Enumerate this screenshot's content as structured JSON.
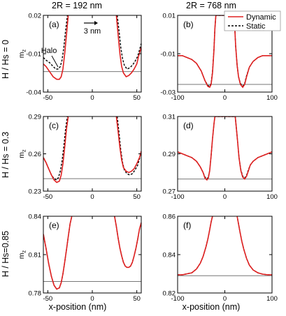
{
  "figure": {
    "col_titles": [
      "2R = 192 nm",
      "2R = 768 nm"
    ],
    "row_titles": [
      "H / Hs = 0",
      "H / Hs = 0.3",
      "H / Hs=0.85"
    ],
    "xlabel": "x-position (nm)",
    "legend": [
      {
        "label": "Dynamic",
        "color": "#e02020",
        "dash": "solid"
      },
      {
        "label": "Static",
        "color": "#000000",
        "dash": "dashed"
      }
    ],
    "annotations": {
      "halo": "Halo",
      "scale": "3 nm"
    }
  },
  "chart_data": [
    {
      "type": "line",
      "panel": "(a)",
      "xlim": [
        -55,
        55
      ],
      "ylim": [
        -0.04,
        0.02
      ],
      "xticks": [
        -50,
        0,
        50
      ],
      "xtick_labels": [
        "-50",
        "0",
        "50"
      ],
      "yticks": [
        0.02,
        -0.01,
        -0.04
      ],
      "ytick_labels": [
        "0.02",
        "-0.01",
        "-0.04"
      ],
      "ylabel": "mz",
      "hline": -0.024,
      "series": [
        {
          "name": "Dynamic",
          "x": [
            -55,
            -52,
            -48,
            -44,
            -40,
            -37,
            -35,
            -33,
            -31,
            -29,
            -27,
            27,
            29,
            31,
            33,
            35,
            38,
            41,
            44,
            47,
            50,
            52,
            55
          ],
          "y": [
            -0.018,
            -0.02,
            -0.024,
            -0.028,
            -0.03,
            -0.03,
            -0.028,
            -0.022,
            -0.01,
            0.005,
            0.02,
            0.02,
            0.005,
            -0.01,
            -0.02,
            -0.025,
            -0.028,
            -0.027,
            -0.025,
            -0.022,
            -0.018,
            -0.012,
            -0.005
          ]
        },
        {
          "name": "Static",
          "x": [
            -55,
            -52,
            -48,
            -44,
            -41,
            -38,
            -36,
            -34,
            -32,
            -30,
            -28,
            28,
            30,
            32,
            34,
            36,
            39,
            42,
            45,
            48,
            51,
            53,
            55
          ],
          "y": [
            -0.013,
            -0.015,
            -0.017,
            -0.02,
            -0.022,
            -0.022,
            -0.02,
            -0.015,
            -0.005,
            0.008,
            0.02,
            0.02,
            0.008,
            -0.005,
            -0.014,
            -0.019,
            -0.022,
            -0.021,
            -0.019,
            -0.016,
            -0.012,
            -0.007,
            -0.002
          ]
        }
      ]
    },
    {
      "type": "line",
      "panel": "(b)",
      "xlim": [
        -100,
        100
      ],
      "ylim": [
        -0.03,
        0.01
      ],
      "xticks": [
        -100,
        0,
        100
      ],
      "xtick_labels": [
        "-100",
        "0",
        "100"
      ],
      "yticks": [
        0.01,
        -0.01,
        -0.03
      ],
      "ytick_labels": [
        "0.01",
        "-0.01",
        "-0.03"
      ],
      "ylabel": "",
      "hline": -0.026,
      "series": [
        {
          "name": "Dynamic",
          "x": [
            -100,
            -90,
            -80,
            -70,
            -60,
            -50,
            -42,
            -36,
            -32,
            -29,
            -26,
            -23,
            -21,
            -19,
            19,
            21,
            23,
            26,
            29,
            33,
            38,
            42,
            46,
            52,
            60,
            70,
            80,
            90,
            100
          ],
          "y": [
            -0.011,
            -0.011,
            -0.012,
            -0.013,
            -0.015,
            -0.019,
            -0.024,
            -0.027,
            -0.0275,
            -0.026,
            -0.02,
            -0.008,
            0.003,
            0.01,
            0.01,
            0.004,
            -0.006,
            -0.016,
            -0.022,
            -0.026,
            -0.0275,
            -0.026,
            -0.022,
            -0.017,
            -0.014,
            -0.012,
            -0.011,
            -0.011,
            -0.011
          ]
        },
        {
          "name": "Static",
          "x": [
            -100,
            -90,
            -80,
            -70,
            -60,
            -50,
            -42,
            -36,
            -32,
            -29,
            -26,
            -23,
            -21,
            -19,
            19,
            21,
            23,
            26,
            29,
            33,
            38,
            42,
            46,
            52,
            60,
            70,
            80,
            90,
            100
          ],
          "y": [
            -0.011,
            -0.011,
            -0.012,
            -0.013,
            -0.015,
            -0.019,
            -0.024,
            -0.0265,
            -0.027,
            -0.0255,
            -0.0195,
            -0.0075,
            0.003,
            0.01,
            0.01,
            0.004,
            -0.006,
            -0.016,
            -0.022,
            -0.0255,
            -0.027,
            -0.0255,
            -0.0215,
            -0.017,
            -0.014,
            -0.012,
            -0.011,
            -0.011,
            -0.011
          ]
        }
      ]
    },
    {
      "type": "line",
      "panel": "(c)",
      "xlim": [
        -55,
        55
      ],
      "ylim": [
        0.23,
        0.29
      ],
      "xticks": [
        -50,
        0,
        50
      ],
      "xtick_labels": [
        "-50",
        "0",
        "50"
      ],
      "yticks": [
        0.29,
        0.26,
        0.23
      ],
      "ytick_labels": [
        "0.29",
        "0.26",
        "0.23"
      ],
      "ylabel": "mz",
      "hline": 0.24,
      "series": [
        {
          "name": "Dynamic",
          "x": [
            -55,
            -52,
            -49,
            -46,
            -43,
            -40,
            -37,
            -35,
            -33,
            -31,
            -29,
            -27,
            27,
            29,
            31,
            33,
            35,
            38,
            41,
            44,
            47,
            50,
            53,
            55
          ],
          "y": [
            0.257,
            0.253,
            0.248,
            0.243,
            0.239,
            0.237,
            0.238,
            0.243,
            0.252,
            0.265,
            0.28,
            0.29,
            0.29,
            0.278,
            0.265,
            0.255,
            0.249,
            0.246,
            0.245,
            0.246,
            0.248,
            0.252,
            0.257,
            0.262
          ]
        },
        {
          "name": "Static",
          "x": [
            -55,
            -52,
            -49,
            -46,
            -43,
            -40,
            -38,
            -36,
            -34,
            -32,
            -30,
            -28,
            28,
            30,
            32,
            34,
            36,
            39,
            42,
            45,
            48,
            51,
            53,
            55
          ],
          "y": [
            0.257,
            0.253,
            0.248,
            0.243,
            0.24,
            0.239,
            0.241,
            0.246,
            0.254,
            0.266,
            0.28,
            0.29,
            0.29,
            0.277,
            0.263,
            0.253,
            0.247,
            0.244,
            0.243,
            0.244,
            0.247,
            0.251,
            0.256,
            0.262
          ]
        }
      ]
    },
    {
      "type": "line",
      "panel": "(d)",
      "xlim": [
        -100,
        100
      ],
      "ylim": [
        0.27,
        0.31
      ],
      "xticks": [
        -100,
        0,
        100
      ],
      "xtick_labels": [
        "-100",
        "0",
        "100"
      ],
      "yticks": [
        0.31,
        0.29,
        0.27
      ],
      "ytick_labels": [
        "0.31",
        "0.29",
        "0.27"
      ],
      "ylabel": "",
      "hline": 0.2765,
      "series": [
        {
          "name": "Dynamic",
          "x": [
            -100,
            -90,
            -80,
            -70,
            -60,
            -52,
            -46,
            -42,
            -38,
            -35,
            -32,
            -29,
            -26,
            -23,
            -21,
            22,
            24,
            27,
            30,
            34,
            38,
            42,
            46,
            50,
            54,
            60,
            70,
            80,
            90,
            100
          ],
          "y": [
            0.291,
            0.29,
            0.289,
            0.288,
            0.286,
            0.283,
            0.28,
            0.277,
            0.276,
            0.277,
            0.281,
            0.289,
            0.298,
            0.306,
            0.31,
            0.31,
            0.305,
            0.297,
            0.288,
            0.281,
            0.2775,
            0.2765,
            0.278,
            0.281,
            0.284,
            0.286,
            0.288,
            0.289,
            0.29,
            0.291
          ]
        },
        {
          "name": "Static",
          "x": [
            -100,
            -90,
            -80,
            -70,
            -60,
            -52,
            -46,
            -42,
            -38,
            -35,
            -32,
            -29,
            -26,
            -23,
            -21,
            22,
            24,
            27,
            30,
            34,
            38,
            42,
            46,
            50,
            54,
            60,
            70,
            80,
            90,
            100
          ],
          "y": [
            0.291,
            0.29,
            0.289,
            0.288,
            0.286,
            0.283,
            0.28,
            0.2775,
            0.2765,
            0.2775,
            0.281,
            0.289,
            0.298,
            0.306,
            0.31,
            0.31,
            0.305,
            0.297,
            0.288,
            0.2815,
            0.278,
            0.277,
            0.2785,
            0.2815,
            0.284,
            0.286,
            0.288,
            0.289,
            0.29,
            0.291
          ]
        }
      ]
    },
    {
      "type": "line",
      "panel": "(e)",
      "xlim": [
        -55,
        55
      ],
      "ylim": [
        0.78,
        0.84
      ],
      "xticks": [
        -50,
        0,
        50
      ],
      "xtick_labels": [
        "-50",
        "0",
        "50"
      ],
      "yticks": [
        0.84,
        0.81,
        0.78
      ],
      "ytick_labels": [
        "0.84",
        "0.81",
        "0.78"
      ],
      "ylabel": "mz",
      "hline": 0.789,
      "series": [
        {
          "name": "Dynamic",
          "x": [
            -55,
            -52,
            -49,
            -46,
            -43,
            -40,
            -37,
            -35,
            -33,
            -31,
            -29,
            -27,
            -25,
            -23,
            25,
            27,
            29,
            31,
            33,
            35,
            37,
            39,
            41,
            43,
            45,
            47,
            49,
            51,
            53,
            55
          ],
          "y": [
            0.826,
            0.815,
            0.803,
            0.793,
            0.786,
            0.783,
            0.784,
            0.788,
            0.795,
            0.804,
            0.814,
            0.824,
            0.834,
            0.84,
            0.84,
            0.832,
            0.823,
            0.815,
            0.809,
            0.804,
            0.801,
            0.8,
            0.8,
            0.801,
            0.804,
            0.809,
            0.815,
            0.822,
            0.83,
            0.835
          ]
        },
        {
          "name": "Static",
          "x": [
            -55,
            -52,
            -49,
            -46,
            -43,
            -40,
            -37,
            -35,
            -33,
            -31,
            -29,
            -27,
            -25,
            -23,
            25,
            27,
            29,
            31,
            33,
            35,
            37,
            39,
            41,
            43,
            45,
            47,
            49,
            51,
            53,
            55
          ],
          "y": [
            0.826,
            0.815,
            0.803,
            0.793,
            0.786,
            0.783,
            0.784,
            0.788,
            0.795,
            0.804,
            0.814,
            0.824,
            0.834,
            0.84,
            0.84,
            0.832,
            0.823,
            0.815,
            0.809,
            0.804,
            0.801,
            0.8,
            0.8,
            0.801,
            0.804,
            0.809,
            0.815,
            0.822,
            0.83,
            0.835
          ]
        }
      ]
    },
    {
      "type": "line",
      "panel": "(f)",
      "xlim": [
        -100,
        100
      ],
      "ylim": [
        0.82,
        0.86
      ],
      "xticks": [
        -100,
        0,
        100
      ],
      "xtick_labels": [
        "-100",
        "0",
        "100"
      ],
      "yticks": [
        0.86,
        0.84,
        0.82
      ],
      "ytick_labels": [
        "0.86",
        "0.84",
        "0.82"
      ],
      "ylabel": "",
      "hline": 0.829,
      "series": [
        {
          "name": "Dynamic",
          "x": [
            -100,
            -90,
            -80,
            -70,
            -60,
            -52,
            -46,
            -40,
            -36,
            -32,
            -29,
            -26,
            -23,
            23,
            26,
            29,
            32,
            36,
            40,
            46,
            52,
            60,
            70,
            80,
            90,
            100
          ],
          "y": [
            0.8295,
            0.8295,
            0.83,
            0.8305,
            0.8325,
            0.8355,
            0.839,
            0.844,
            0.848,
            0.853,
            0.857,
            0.86,
            0.861,
            0.861,
            0.86,
            0.856,
            0.852,
            0.847,
            0.843,
            0.838,
            0.8345,
            0.832,
            0.8305,
            0.8298,
            0.8295,
            0.8295
          ]
        },
        {
          "name": "Static",
          "x": [
            -100,
            -90,
            -80,
            -70,
            -60,
            -52,
            -46,
            -40,
            -36,
            -32,
            -29,
            -26,
            -23,
            23,
            26,
            29,
            32,
            36,
            40,
            46,
            52,
            60,
            70,
            80,
            90,
            100
          ],
          "y": [
            0.8295,
            0.8295,
            0.83,
            0.8305,
            0.8325,
            0.8355,
            0.839,
            0.844,
            0.848,
            0.853,
            0.857,
            0.86,
            0.861,
            0.861,
            0.86,
            0.856,
            0.852,
            0.847,
            0.843,
            0.838,
            0.8345,
            0.832,
            0.8305,
            0.8298,
            0.8295,
            0.8295
          ]
        }
      ]
    }
  ]
}
